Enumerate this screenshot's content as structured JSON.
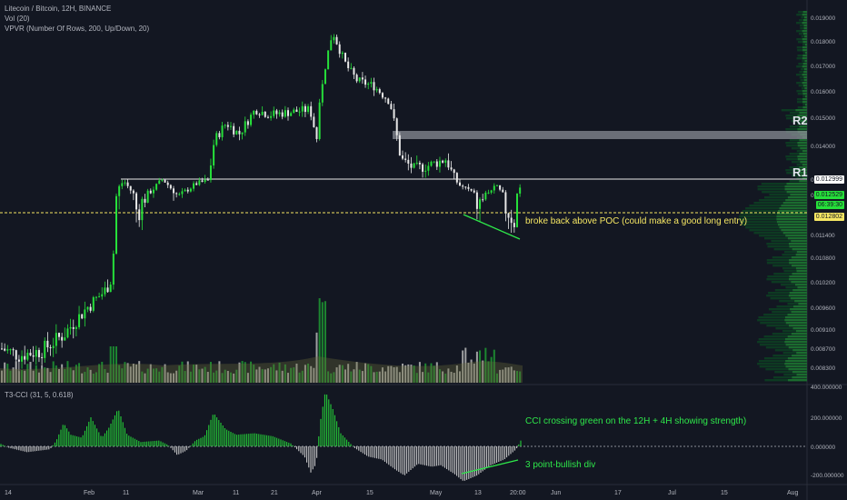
{
  "legend": {
    "symbol": "Litecoin / Bitcoin, 12H, BINANCE",
    "vol": "Vol (20)",
    "vpvr": "VPVR (Number Of Rows, 200, Up/Down, 20)",
    "cci": "T3-CCI (31, 5, 0.618)"
  },
  "annotations": {
    "poc": "broke back above POC (could make a good long entry)",
    "cci_cross": "CCI crossing green on the 12H + 4H showing strength)",
    "div": "3 point-bullish div"
  },
  "levels": {
    "r1": "R1",
    "r2": "R2"
  },
  "price_tags": {
    "r1": "0.012999",
    "current": "0.012529",
    "countdown": "06:39:30",
    "poc": "0.012802"
  },
  "price_axis": [
    "0.019000",
    "0.018000",
    "0.017000",
    "0.016000",
    "0.015000",
    "0.014000",
    "0.013000",
    "0.012000",
    "0.011400",
    "0.010800",
    "0.010200",
    "0.009600",
    "0.009100",
    "0.008700",
    "0.008300"
  ],
  "cci_axis": [
    "400.000000",
    "200.000000",
    "0.000000",
    "-200.000000"
  ],
  "time_axis": [
    "14",
    "Feb",
    "11",
    "Mar",
    "11",
    "21",
    "Apr",
    "15",
    "May",
    "13",
    "20:00",
    "Jun",
    "17",
    "Jul",
    "15",
    "Aug"
  ],
  "colors": {
    "bg": "#131722",
    "up": "#26e03a",
    "down": "#e8e8e8",
    "accent_yellow": "#f5e663",
    "annotation_green": "#2ee84a",
    "grid": "#1e222d"
  },
  "chart_data": {
    "type": "candlestick",
    "title": "Litecoin / Bitcoin, 12H, BINANCE",
    "ylim": [
      0.008,
      0.0194
    ],
    "key_levels": {
      "R1": 0.012999,
      "R2": 0.0144,
      "POC": 0.012802,
      "last": 0.012529
    },
    "cci_range": [
      -250,
      420
    ]
  }
}
